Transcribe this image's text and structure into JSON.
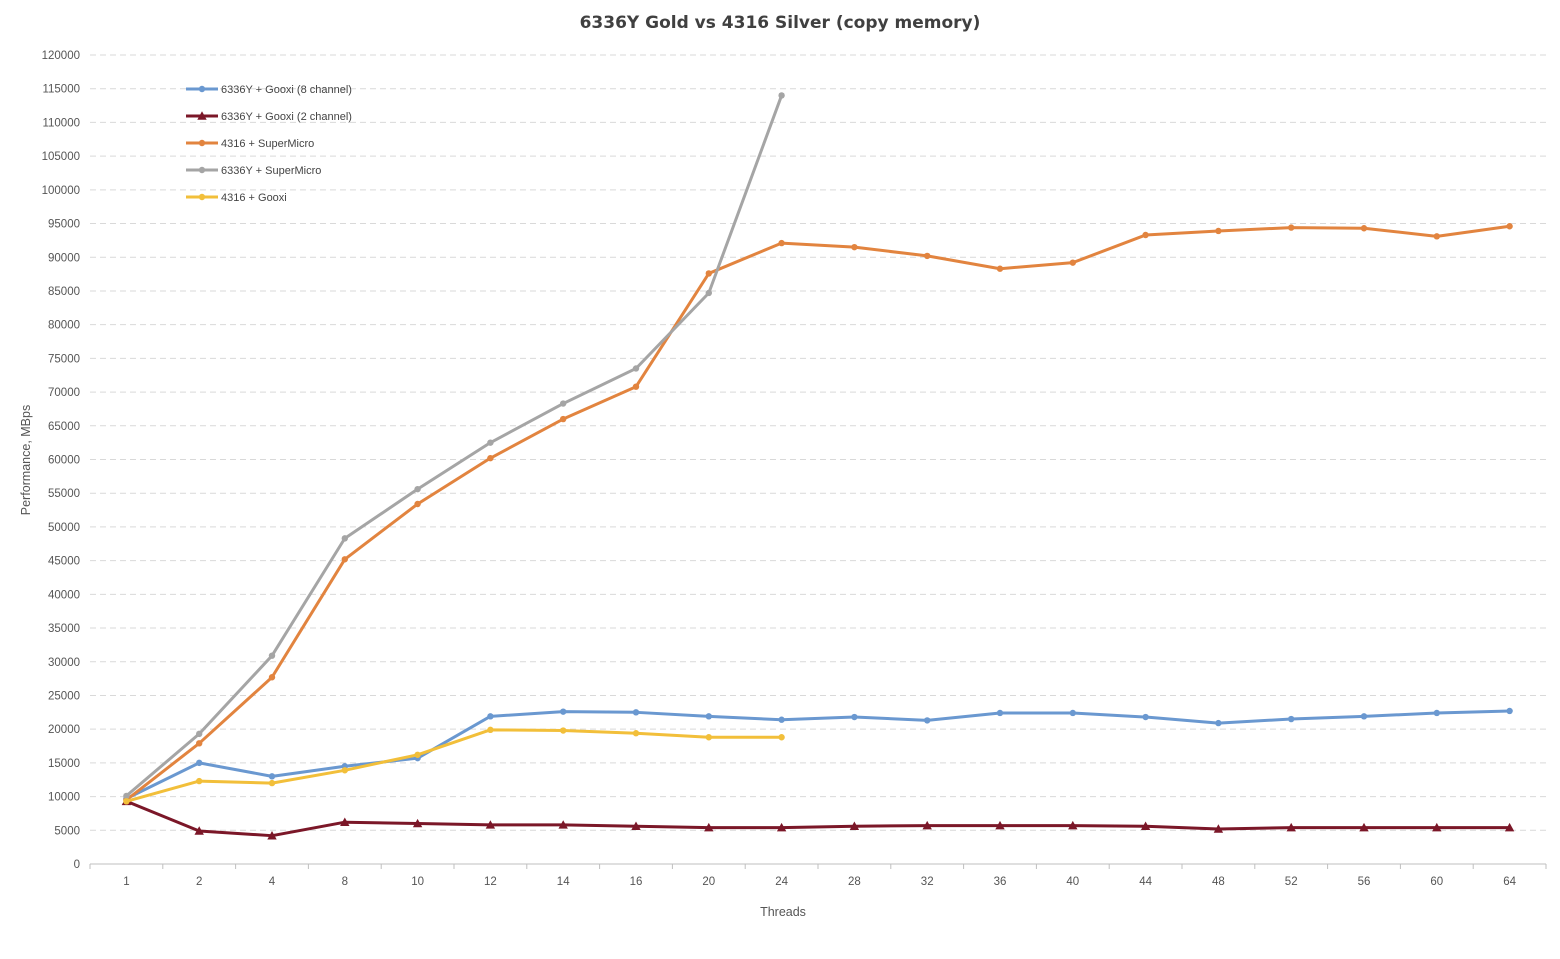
{
  "chart_data": {
    "type": "line",
    "title": "6336Y Gold vs 4316 Silver (copy memory)",
    "xlabel": "Threads",
    "ylabel": "Performance, MBps",
    "categories": [
      "1",
      "2",
      "4",
      "8",
      "10",
      "12",
      "14",
      "16",
      "20",
      "24",
      "28",
      "32",
      "36",
      "40",
      "44",
      "48",
      "52",
      "56",
      "60",
      "64"
    ],
    "ylim": [
      0,
      120000
    ],
    "ytick_step": 5000,
    "grid": "horizontal dashed",
    "legend_position": "top-left",
    "series": [
      {
        "name": "6336Y + Gooxi (8 channel)",
        "color": "#6a98d0",
        "marker": "circle",
        "values": [
          9700,
          15000,
          13000,
          14500,
          15700,
          21900,
          22600,
          22500,
          21900,
          21400,
          21800,
          21300,
          22400,
          22400,
          21800,
          20900,
          21500,
          21900,
          22400,
          22700
        ]
      },
      {
        "name": "6336Y + Gooxi (2 channel)",
        "color": "#7b1728",
        "marker": "triangle",
        "values": [
          9300,
          4900,
          4200,
          6200,
          6000,
          5800,
          5800,
          5600,
          5400,
          5400,
          5600,
          5700,
          5700,
          5700,
          5600,
          5200,
          5400,
          5400,
          5400,
          5400
        ]
      },
      {
        "name": "4316 + SuperMicro",
        "color": "#e2843f",
        "marker": "circle",
        "values": [
          9500,
          17900,
          27700,
          45200,
          53400,
          60200,
          66000,
          70800,
          87600,
          92100,
          91500,
          90200,
          88300,
          89200,
          93300,
          93900,
          94400,
          94300,
          93100,
          94600
        ]
      },
      {
        "name": "6336Y + SuperMicro",
        "color": "#a5a5a5",
        "marker": "circle",
        "values": [
          10100,
          19300,
          30900,
          48300,
          55600,
          62500,
          68300,
          73500,
          84700,
          114000,
          null,
          null,
          null,
          null,
          null,
          null,
          null,
          null,
          null,
          null
        ]
      },
      {
        "name": "4316 + Gooxi",
        "color": "#f2bf3a",
        "marker": "circle",
        "values": [
          9300,
          12300,
          12000,
          13900,
          16200,
          19900,
          19800,
          19400,
          18800,
          18800,
          null,
          null,
          null,
          null,
          null,
          null,
          null,
          null,
          null,
          null
        ]
      }
    ]
  }
}
